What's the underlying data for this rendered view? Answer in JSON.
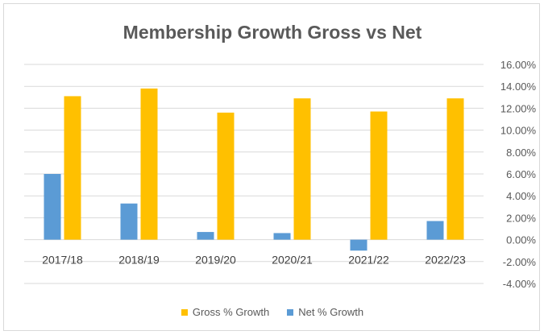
{
  "chart_data": {
    "type": "bar",
    "title": "Membership Growth Gross vs Net",
    "categories": [
      "2017/18",
      "2018/19",
      "2019/20",
      "2020/21",
      "2021/22",
      "2022/23"
    ],
    "series": [
      {
        "name": "Net % Growth",
        "color": "#5b9bd5",
        "values": [
          6.0,
          3.3,
          0.7,
          0.6,
          -1.0,
          1.7
        ]
      },
      {
        "name": "Gross % Growth",
        "color": "#ffc000",
        "values": [
          13.1,
          13.8,
          11.6,
          12.9,
          11.7,
          12.9
        ]
      }
    ],
    "ylim": [
      -4,
      16
    ],
    "yticks": [
      "16.00%",
      "14.00%",
      "12.00%",
      "10.00%",
      "8.00%",
      "6.00%",
      "4.00%",
      "2.00%",
      "0.00%",
      "-2.00%",
      "-4.00%"
    ],
    "grid": true,
    "legend": [
      "Gross % Growth",
      "Net % Growth"
    ],
    "legend_position": "bottom"
  }
}
